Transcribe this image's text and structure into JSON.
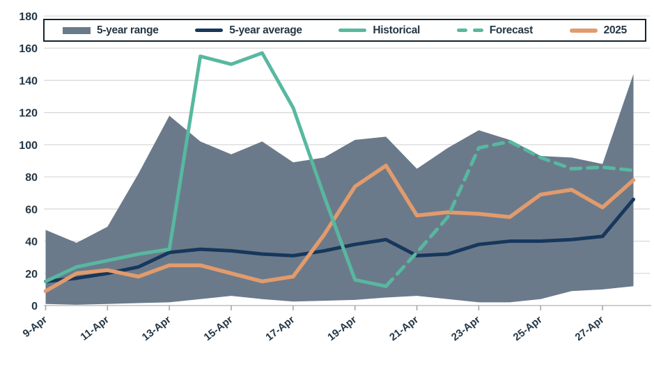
{
  "legend": {
    "items": [
      {
        "label": "5-year range",
        "swatch": "band",
        "color": "#6b7a8a"
      },
      {
        "label": "5-year average",
        "swatch": "line",
        "color": "#17375c"
      },
      {
        "label": "Historical",
        "swatch": "line",
        "color": "#57b8a0"
      },
      {
        "label": "Forecast",
        "swatch": "dashes",
        "color": "#57b8a0"
      },
      {
        "label": "2025",
        "swatch": "line",
        "color": "#e19b6d"
      }
    ]
  },
  "axes": {
    "y": {
      "min": 0,
      "max": 180,
      "step": 20,
      "tick_labels": [
        "0",
        "20",
        "40",
        "60",
        "80",
        "100",
        "120",
        "140",
        "160",
        "180"
      ]
    },
    "x": {
      "tick_labels": [
        "9-Apr",
        "11-Apr",
        "13-Apr",
        "15-Apr",
        "17-Apr",
        "19-Apr",
        "21-Apr",
        "23-Apr",
        "25-Apr",
        "27-Apr"
      ]
    }
  },
  "chart_data": {
    "type": "line",
    "title": "",
    "xlabel": "",
    "ylabel": "",
    "ylim": [
      0,
      180
    ],
    "grid": true,
    "legend_position": "top",
    "x": [
      "9-Apr",
      "10-Apr",
      "11-Apr",
      "12-Apr",
      "13-Apr",
      "14-Apr",
      "15-Apr",
      "16-Apr",
      "17-Apr",
      "18-Apr",
      "19-Apr",
      "20-Apr",
      "21-Apr",
      "22-Apr",
      "23-Apr",
      "24-Apr",
      "25-Apr",
      "26-Apr",
      "27-Apr",
      "28-Apr"
    ],
    "band": {
      "name": "5-year range",
      "high": [
        47,
        39,
        49,
        82,
        118,
        102,
        94,
        102,
        89,
        92,
        103,
        105,
        85,
        98,
        109,
        103,
        93,
        92,
        88,
        144
      ],
      "low": [
        1,
        0.5,
        1,
        1.5,
        2,
        4,
        6,
        4,
        2.5,
        3,
        3.5,
        5,
        6,
        4,
        2,
        2,
        4,
        9,
        10,
        12
      ]
    },
    "series": [
      {
        "name": "5-year average",
        "style": "solid",
        "color": "#17375c",
        "values": [
          15,
          17,
          20,
          24,
          33,
          35,
          34,
          32,
          31,
          34,
          38,
          41,
          31,
          32,
          38,
          40,
          40,
          41,
          43,
          66
        ]
      },
      {
        "name": "2025",
        "style": "solid",
        "color": "#e19b6d",
        "values": [
          9,
          20,
          22,
          18,
          25,
          25,
          20,
          15,
          18,
          44,
          74,
          87,
          56,
          58,
          57,
          55,
          69,
          72,
          61,
          78
        ]
      },
      {
        "name": "Historical",
        "style": "solid",
        "color": "#57b8a0",
        "values": [
          15,
          24,
          28,
          32,
          35,
          155,
          150,
          157,
          123,
          68,
          16,
          12,
          null,
          null,
          null,
          null,
          null,
          null,
          null,
          null
        ]
      },
      {
        "name": "Forecast",
        "style": "dashed",
        "color": "#57b8a0",
        "values": [
          null,
          null,
          null,
          null,
          null,
          null,
          null,
          null,
          null,
          null,
          null,
          12,
          33,
          55,
          98,
          102,
          92,
          85,
          86,
          84
        ]
      }
    ]
  },
  "colors": {
    "background": "#ffffff",
    "band": "#6b7a8a",
    "gridline": "#d9d9d9",
    "axis_line": "#bfbfbf",
    "tick": "#a6a6a6",
    "axis_text": "#243746",
    "legend_border": "#16222c"
  }
}
